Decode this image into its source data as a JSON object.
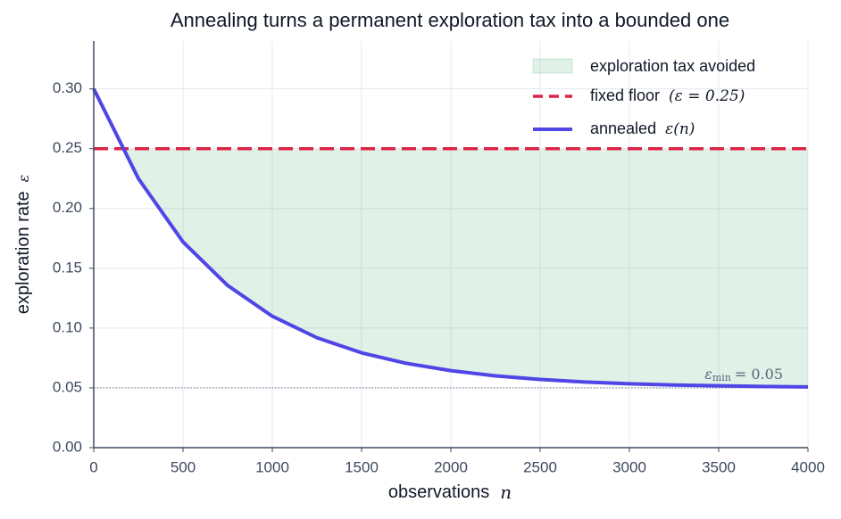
{
  "chart_data": {
    "type": "line",
    "title": "Annealing turns a permanent exploration tax into a bounded one",
    "x_label": "observations",
    "x_label_symbol": "n",
    "y_label": "exploration rate",
    "y_label_symbol": "ε",
    "x": [
      0,
      250,
      500,
      750,
      1000,
      1250,
      1500,
      1750,
      2000,
      2250,
      2500,
      2750,
      3000,
      3250,
      3500,
      3750,
      4000
    ],
    "series": [
      {
        "name": "annealed",
        "name_math": "ε(n)",
        "color": "#4f46e5",
        "values": [
          0.3,
          0.225,
          0.172,
          0.1356,
          0.1099,
          0.0919,
          0.0793,
          0.0705,
          0.0644,
          0.06,
          0.057,
          0.0549,
          0.0534,
          0.0524,
          0.0517,
          0.0512,
          0.0508
        ]
      }
    ],
    "floor": {
      "name": "fixed floor",
      "name_math": "(ε = 0.25)",
      "value": 0.25,
      "color": "#dc2344"
    },
    "fill": {
      "name": "exploration tax avoided",
      "color": "#2ca25f"
    },
    "minimum": {
      "value": 0.05,
      "color": "#7b8599",
      "symbol": "ε",
      "subscript": "min",
      "text": "= 0.05"
    },
    "xlim": [
      0,
      4000
    ],
    "xticks": [
      0,
      500,
      1000,
      1500,
      2000,
      2500,
      3000,
      3500,
      4000
    ],
    "ylim": [
      0,
      0.34
    ],
    "yticks": [
      {
        "value": 0,
        "label": "0.00"
      },
      {
        "value": 0.05,
        "label": "0.05"
      },
      {
        "value": 0.1,
        "label": "0.10"
      },
      {
        "value": 0.15,
        "label": "0.15"
      },
      {
        "value": 0.2,
        "label": "0.20"
      },
      {
        "value": 0.25,
        "label": "0.25"
      },
      {
        "value": 0.3,
        "label": "0.30"
      }
    ],
    "grid": true,
    "legend": "upper right"
  }
}
